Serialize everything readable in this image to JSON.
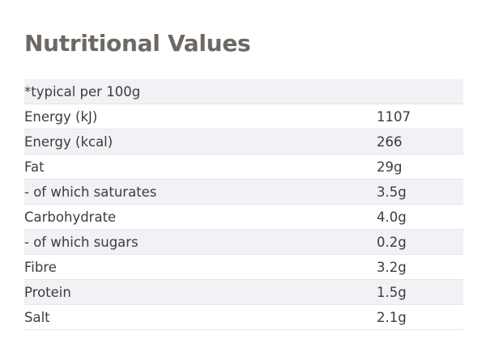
{
  "title": "Nutritional Values",
  "header_note": "*typical per 100g",
  "rows": [
    {
      "label": "Energy (kJ)",
      "value": "1107"
    },
    {
      "label": "Energy (kcal)",
      "value": "266"
    },
    {
      "label": "Fat",
      "value": "29g"
    },
    {
      "label": "- of which saturates",
      "value": "3.5g"
    },
    {
      "label": "Carbohydrate",
      "value": "4.0g"
    },
    {
      "label": "- of which sugars",
      "value": "0.2g"
    },
    {
      "label": "Fibre",
      "value": "3.2g"
    },
    {
      "label": "Protein",
      "value": "1.5g"
    },
    {
      "label": "Salt",
      "value": "2.1g"
    }
  ]
}
